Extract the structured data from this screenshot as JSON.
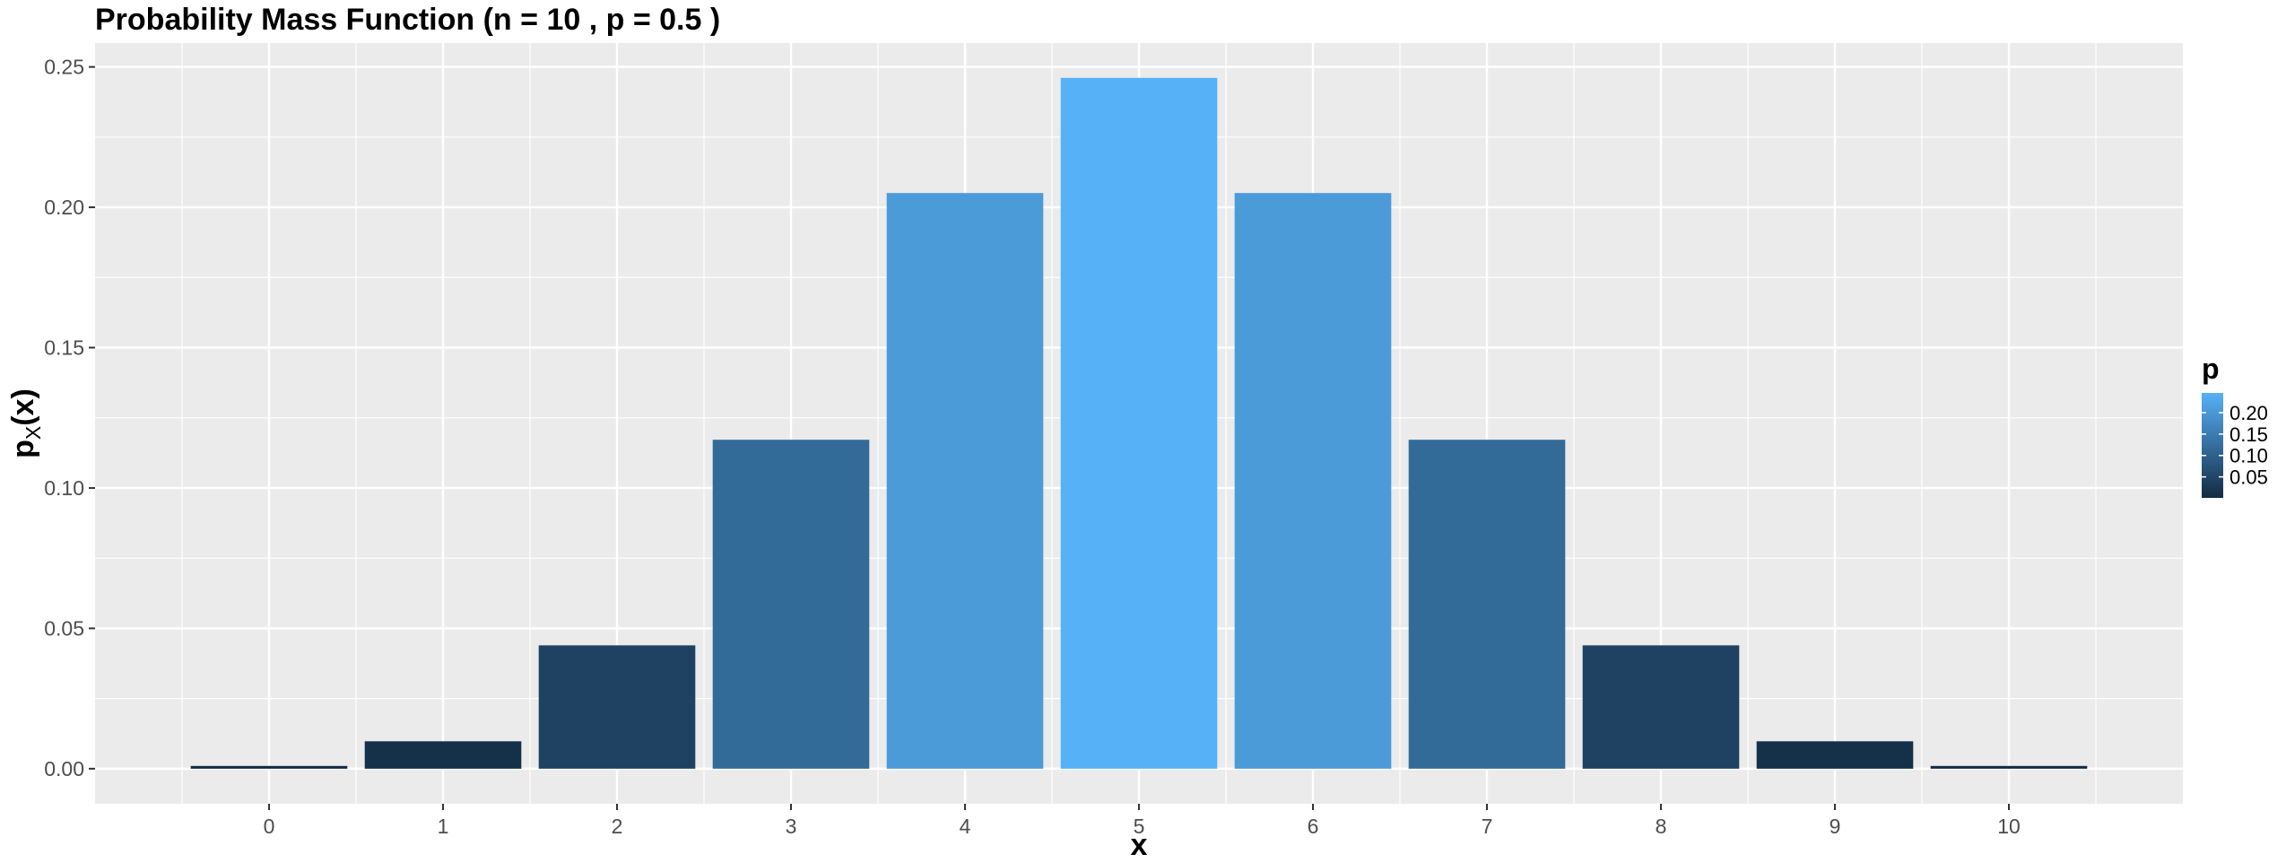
{
  "chart_data": {
    "type": "bar",
    "title": "Probability Mass Function (n = 10 , p = 0.5 )",
    "xlabel": "x",
    "ylabel_main": "p",
    "ylabel_sub": "X",
    "ylabel_tail": "(x)",
    "categories": [
      "0",
      "1",
      "2",
      "3",
      "4",
      "5",
      "6",
      "7",
      "8",
      "9",
      "10"
    ],
    "values": [
      0.0009765625,
      0.009765625,
      0.0439453125,
      0.1171875,
      0.205078125,
      0.24609375,
      0.205078125,
      0.1171875,
      0.0439453125,
      0.009765625,
      0.0009765625
    ],
    "ylim": [
      -0.0125,
      0.2585
    ],
    "yticks": [
      "0.00",
      "0.05",
      "0.10",
      "0.15",
      "0.20",
      "0.25"
    ],
    "grid": true,
    "legend": {
      "title": "p",
      "position": "right",
      "labels": [
        "0.20",
        "0.15",
        "0.10",
        "0.05"
      ],
      "color_low": "#132B43",
      "color_high": "#56B1F7"
    },
    "panel_color": "#EBEBEB",
    "grid_color": "#FFFFFF"
  }
}
